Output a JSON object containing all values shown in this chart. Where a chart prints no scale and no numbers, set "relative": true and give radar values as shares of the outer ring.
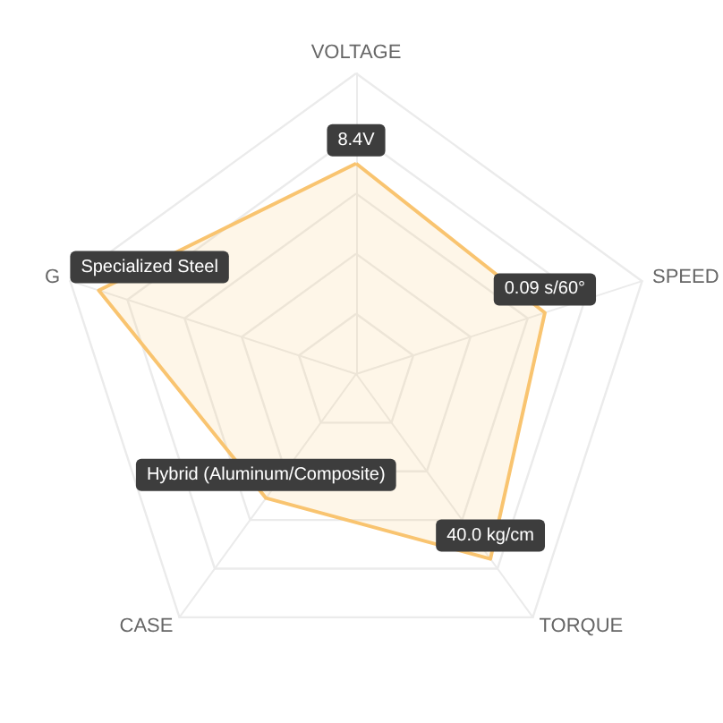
{
  "chart_data": {
    "type": "radar",
    "relative": true,
    "categories": [
      "VOLTAGE",
      "SPEED",
      "TORQUE",
      "CASE",
      "G"
    ],
    "series": [
      {
        "color": "#f9c470",
        "values": [
          0.7,
          0.66,
          0.76,
          0.51,
          0.9
        ]
      }
    ],
    "annotations": [
      {
        "text": "8.4V",
        "x": "VOLTAGE"
      },
      {
        "text": "0.09 s/60°",
        "x": "SPEED"
      },
      {
        "text": "40.0 kg/cm",
        "x": "TORQUE"
      },
      {
        "text": "Hybrid (Aluminum/Composite)",
        "x": "CASE"
      },
      {
        "text": "Specialized Steel",
        "x": "G"
      }
    ],
    "grid": true,
    "marker": "none"
  }
}
